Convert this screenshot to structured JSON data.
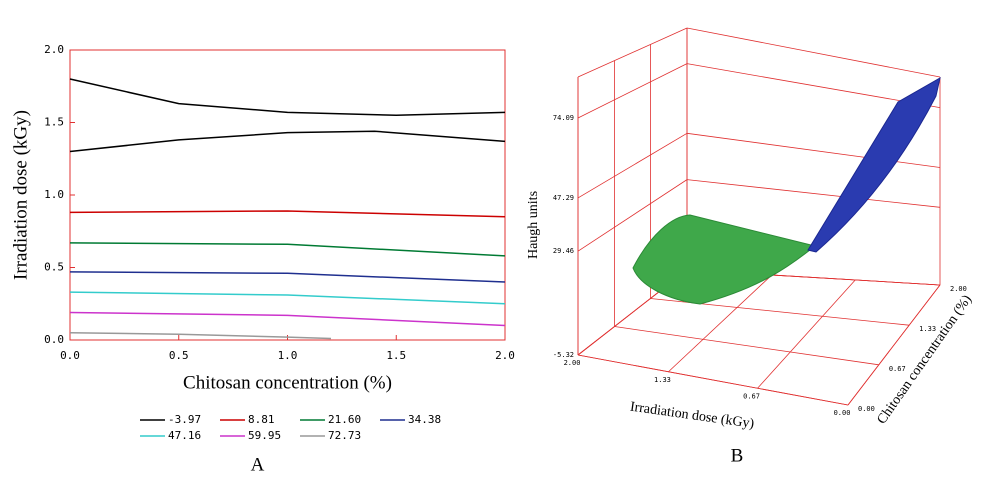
{
  "chart_data": [
    {
      "type": "contour",
      "panel": "A",
      "x_label": "Chitosan concentration (%)",
      "y_label": "Irradiation dose (kGy)",
      "xlim": [
        0,
        2
      ],
      "ylim": [
        0,
        2
      ],
      "xticks": [
        {
          "value": 0,
          "label": "0.0"
        },
        {
          "value": 0.5,
          "label": "0.5"
        },
        {
          "value": 1,
          "label": "1.0"
        },
        {
          "value": 1.5,
          "label": "1.5"
        },
        {
          "value": 2,
          "label": "2.0"
        }
      ],
      "yticks": [
        {
          "value": 0,
          "label": "0.0"
        },
        {
          "value": 0.5,
          "label": "0.5"
        },
        {
          "value": 1,
          "label": "1.0"
        },
        {
          "value": 1.5,
          "label": "1.5"
        },
        {
          "value": 2,
          "label": "2.0"
        }
      ],
      "series": [
        {
          "name": "-3.97",
          "color": "#000000",
          "x": [
            0,
            0.5,
            1,
            1.5,
            2,
            null,
            0,
            0.5,
            1,
            1.4,
            2
          ],
          "values": [
            1.8,
            1.63,
            1.57,
            1.55,
            1.57,
            null,
            1.3,
            1.38,
            1.43,
            1.44,
            1.37
          ]
        },
        {
          "name": "8.81",
          "color": "#cc0000",
          "x": [
            0,
            1,
            2
          ],
          "values": [
            0.88,
            0.89,
            0.85
          ]
        },
        {
          "name": "21.60",
          "color": "#007a33",
          "x": [
            0,
            1,
            2
          ],
          "values": [
            0.67,
            0.66,
            0.58
          ]
        },
        {
          "name": "34.38",
          "color": "#1f2f8f",
          "x": [
            0,
            1,
            2
          ],
          "values": [
            0.47,
            0.46,
            0.4
          ]
        },
        {
          "name": "47.16",
          "color": "#33cccc",
          "x": [
            0,
            1,
            2
          ],
          "values": [
            0.33,
            0.31,
            0.25
          ]
        },
        {
          "name": "59.95",
          "color": "#cc33cc",
          "x": [
            0,
            1,
            2
          ],
          "values": [
            0.19,
            0.17,
            0.1
          ]
        },
        {
          "name": "72.73",
          "color": "#999999",
          "x": [
            0,
            0.5,
            1,
            1.2
          ],
          "values": [
            0.05,
            0.04,
            0.02,
            0.01
          ]
        }
      ]
    },
    {
      "type": "surface3d",
      "panel": "B",
      "x_label": "Irradiation dose (kGy)",
      "y_label": "Chitosan concentration (%)",
      "z_label": "Haugh units",
      "xlim": [
        2,
        0
      ],
      "ylim": [
        0,
        2
      ],
      "zlim": [
        -5.32,
        87.81
      ],
      "xticks": [
        {
          "value": 2,
          "label": "2.00"
        },
        1.33,
        0.67,
        {
          "value": 0,
          "label": "0.00"
        }
      ],
      "yticks": [
        {
          "value": 0,
          "label": "0.00"
        },
        0.67,
        1.33,
        {
          "value": 2,
          "label": "2.00"
        }
      ],
      "zticks": [
        -5.32,
        29.46,
        47.29,
        74.09
      ]
    }
  ]
}
